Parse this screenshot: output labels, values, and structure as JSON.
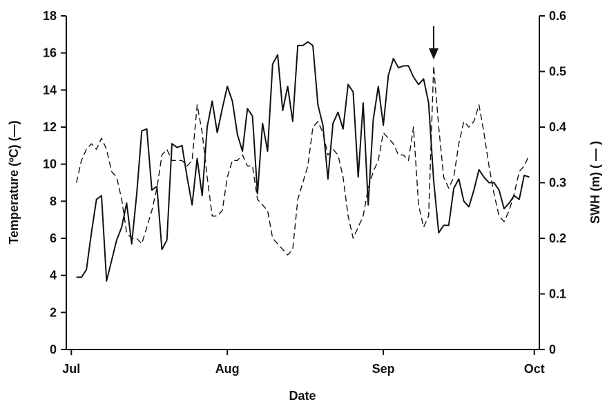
{
  "chart_data": {
    "type": "line",
    "xlabel": "Date",
    "ylabel_left": "Temperature (ºC) (—)",
    "ylabel_right": "SWH (m) ( — )",
    "x_ticks": [
      "Jul",
      "Aug",
      "Sep",
      "Oct"
    ],
    "x_tick_dates": [
      "07-01",
      "08-01",
      "09-01",
      "10-01"
    ],
    "y_left_ticks": [
      "0",
      "2",
      "4",
      "6",
      "8",
      "10",
      "12",
      "14",
      "16",
      "18"
    ],
    "y_right_ticks": [
      "0",
      "0.1",
      "0.2",
      "0.3",
      "0.4",
      "0.5",
      "0.6"
    ],
    "ylim_left": [
      0,
      18
    ],
    "ylim_right": [
      0,
      0.6
    ],
    "xlim": [
      "06-30",
      "10-02"
    ],
    "grid": false,
    "annotation": {
      "type": "arrow",
      "x": "09-11",
      "pointing": "down"
    },
    "series": [
      {
        "axis": "left",
        "style": "solid",
        "points": [
          [
            "07-02",
            3.9
          ],
          [
            "07-03",
            3.9
          ],
          [
            "07-04",
            4.3
          ],
          [
            "07-05",
            6.3
          ],
          [
            "07-06",
            8.1
          ],
          [
            "07-07",
            8.3
          ],
          [
            "07-08",
            3.7
          ],
          [
            "07-09",
            4.8
          ],
          [
            "07-10",
            5.9
          ],
          [
            "07-11",
            6.6
          ],
          [
            "07-12",
            7.9
          ],
          [
            "07-13",
            5.7
          ],
          [
            "07-14",
            8.4
          ],
          [
            "07-15",
            11.8
          ],
          [
            "07-16",
            11.9
          ],
          [
            "07-17",
            8.6
          ],
          [
            "07-18",
            8.8
          ],
          [
            "07-19",
            5.4
          ],
          [
            "07-20",
            5.9
          ],
          [
            "07-21",
            11.1
          ],
          [
            "07-22",
            10.9
          ],
          [
            "07-23",
            11.0
          ],
          [
            "07-24",
            9.3
          ],
          [
            "07-25",
            7.8
          ],
          [
            "07-26",
            10.3
          ],
          [
            "07-27",
            8.3
          ],
          [
            "07-28",
            12.0
          ],
          [
            "07-29",
            13.4
          ],
          [
            "07-30",
            11.7
          ],
          [
            "07-31",
            13.0
          ],
          [
            "08-01",
            14.2
          ],
          [
            "08-02",
            13.4
          ],
          [
            "08-03",
            11.6
          ],
          [
            "08-04",
            10.7
          ],
          [
            "08-05",
            13.0
          ],
          [
            "08-06",
            12.6
          ],
          [
            "08-07",
            8.4
          ],
          [
            "08-08",
            12.2
          ],
          [
            "08-09",
            10.7
          ],
          [
            "08-10",
            15.4
          ],
          [
            "08-11",
            15.9
          ],
          [
            "08-12",
            12.9
          ],
          [
            "08-13",
            14.2
          ],
          [
            "08-14",
            12.3
          ],
          [
            "08-15",
            16.4
          ],
          [
            "08-16",
            16.4
          ],
          [
            "08-17",
            16.6
          ],
          [
            "08-18",
            16.4
          ],
          [
            "08-19",
            13.2
          ],
          [
            "08-20",
            12.1
          ],
          [
            "08-21",
            9.2
          ],
          [
            "08-22",
            12.2
          ],
          [
            "08-23",
            12.8
          ],
          [
            "08-24",
            11.9
          ],
          [
            "08-25",
            14.3
          ],
          [
            "08-26",
            13.9
          ],
          [
            "08-27",
            9.3
          ],
          [
            "08-28",
            13.3
          ],
          [
            "08-29",
            7.8
          ],
          [
            "08-30",
            12.4
          ],
          [
            "08-31",
            14.2
          ],
          [
            "09-01",
            12.1
          ],
          [
            "09-02",
            14.8
          ],
          [
            "09-03",
            15.7
          ],
          [
            "09-04",
            15.2
          ],
          [
            "09-05",
            15.3
          ],
          [
            "09-06",
            15.3
          ],
          [
            "09-07",
            14.7
          ],
          [
            "09-08",
            14.3
          ],
          [
            "09-09",
            14.6
          ],
          [
            "09-10",
            13.3
          ],
          [
            "09-11",
            9.1
          ],
          [
            "09-12",
            6.3
          ],
          [
            "09-13",
            6.7
          ],
          [
            "09-14",
            6.7
          ],
          [
            "09-15",
            8.7
          ],
          [
            "09-16",
            9.2
          ],
          [
            "09-17",
            8.0
          ],
          [
            "09-18",
            7.7
          ],
          [
            "09-19",
            8.6
          ],
          [
            "09-20",
            9.7
          ],
          [
            "09-21",
            9.3
          ],
          [
            "09-22",
            9.0
          ],
          [
            "09-23",
            9.0
          ],
          [
            "09-24",
            8.6
          ],
          [
            "09-25",
            7.6
          ],
          [
            "09-26",
            7.9
          ],
          [
            "09-27",
            8.3
          ],
          [
            "09-28",
            8.1
          ],
          [
            "09-29",
            9.4
          ],
          [
            "09-30",
            9.3
          ]
        ]
      },
      {
        "axis": "right",
        "style": "dashed",
        "points": [
          [
            "07-02",
            0.3
          ],
          [
            "07-03",
            0.34
          ],
          [
            "07-04",
            0.36
          ],
          [
            "07-05",
            0.37
          ],
          [
            "07-06",
            0.36
          ],
          [
            "07-07",
            0.38
          ],
          [
            "07-08",
            0.36
          ],
          [
            "07-09",
            0.32
          ],
          [
            "07-10",
            0.31
          ],
          [
            "07-11",
            0.27
          ],
          [
            "07-12",
            0.21
          ],
          [
            "07-13",
            0.2
          ],
          [
            "07-14",
            0.2
          ],
          [
            "07-15",
            0.19
          ],
          [
            "07-16",
            0.22
          ],
          [
            "07-17",
            0.25
          ],
          [
            "07-18",
            0.29
          ],
          [
            "07-19",
            0.35
          ],
          [
            "07-20",
            0.36
          ],
          [
            "07-21",
            0.34
          ],
          [
            "07-22",
            0.34
          ],
          [
            "07-23",
            0.34
          ],
          [
            "07-24",
            0.33
          ],
          [
            "07-25",
            0.34
          ],
          [
            "07-26",
            0.44
          ],
          [
            "07-27",
            0.39
          ],
          [
            "07-28",
            0.31
          ],
          [
            "07-29",
            0.24
          ],
          [
            "07-30",
            0.24
          ],
          [
            "07-31",
            0.25
          ],
          [
            "08-01",
            0.31
          ],
          [
            "08-02",
            0.34
          ],
          [
            "08-03",
            0.34
          ],
          [
            "08-04",
            0.35
          ],
          [
            "08-05",
            0.33
          ],
          [
            "08-06",
            0.33
          ],
          [
            "08-07",
            0.27
          ],
          [
            "08-08",
            0.26
          ],
          [
            "08-09",
            0.25
          ],
          [
            "08-10",
            0.2
          ],
          [
            "08-11",
            0.19
          ],
          [
            "08-12",
            0.18
          ],
          [
            "08-13",
            0.17
          ],
          [
            "08-14",
            0.18
          ],
          [
            "08-15",
            0.27
          ],
          [
            "08-16",
            0.3
          ],
          [
            "08-17",
            0.33
          ],
          [
            "08-18",
            0.4
          ],
          [
            "08-19",
            0.41
          ],
          [
            "08-20",
            0.39
          ],
          [
            "08-21",
            0.35
          ],
          [
            "08-22",
            0.36
          ],
          [
            "08-23",
            0.35
          ],
          [
            "08-24",
            0.31
          ],
          [
            "08-25",
            0.24
          ],
          [
            "08-26",
            0.2
          ],
          [
            "08-27",
            0.22
          ],
          [
            "08-28",
            0.24
          ],
          [
            "08-29",
            0.29
          ],
          [
            "08-30",
            0.32
          ],
          [
            "08-31",
            0.34
          ],
          [
            "09-01",
            0.39
          ],
          [
            "09-02",
            0.38
          ],
          [
            "09-03",
            0.37
          ],
          [
            "09-04",
            0.35
          ],
          [
            "09-05",
            0.35
          ],
          [
            "09-06",
            0.34
          ],
          [
            "09-07",
            0.4
          ],
          [
            "09-08",
            0.26
          ],
          [
            "09-09",
            0.22
          ],
          [
            "09-10",
            0.24
          ],
          [
            "09-11",
            0.51
          ],
          [
            "09-12",
            0.4
          ],
          [
            "09-13",
            0.31
          ],
          [
            "09-14",
            0.29
          ],
          [
            "09-15",
            0.31
          ],
          [
            "09-16",
            0.37
          ],
          [
            "09-17",
            0.41
          ],
          [
            "09-18",
            0.4
          ],
          [
            "09-19",
            0.41
          ],
          [
            "09-20",
            0.44
          ],
          [
            "09-21",
            0.39
          ],
          [
            "09-22",
            0.33
          ],
          [
            "09-23",
            0.28
          ],
          [
            "09-24",
            0.24
          ],
          [
            "09-25",
            0.23
          ],
          [
            "09-26",
            0.25
          ],
          [
            "09-27",
            0.28
          ],
          [
            "09-28",
            0.32
          ],
          [
            "09-29",
            0.33
          ],
          [
            "09-30",
            0.35
          ]
        ]
      }
    ]
  }
}
